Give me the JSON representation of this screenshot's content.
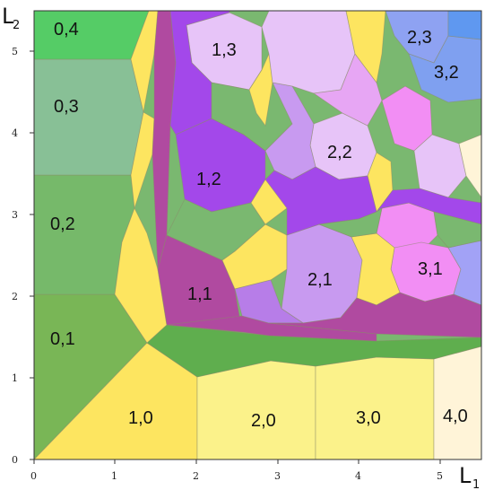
{
  "axes": {
    "x_title": "L",
    "x_sub": "1",
    "y_title": "L",
    "y_sub": "2",
    "x_ticks": [
      "0",
      "1",
      "2",
      "3",
      "4",
      "5"
    ],
    "y_ticks": [
      "0",
      "1",
      "2",
      "3",
      "4",
      "5"
    ]
  },
  "labels": {
    "r04": "0,4",
    "r03": "0,3",
    "r02": "0,2",
    "r01": "0,1",
    "r10": "1,0",
    "r20": "2,0",
    "r30": "3,0",
    "r40": "4,0",
    "r11": "1,1",
    "r12": "1,2",
    "r13": "1,3",
    "r21": "2,1",
    "r22": "2,2",
    "r23": "2,3",
    "r31": "3,1",
    "r32": "3,2"
  },
  "colors": {
    "green_bright": "#55cc66",
    "green_teal": "#88c096",
    "green_mid": "#7ab870",
    "green_olive": "#79b656",
    "green_field": "#6aab5a",
    "yellow_bright": "#fde560",
    "yellow_light": "#fbf28a",
    "cream": "#fff4d8",
    "magenta": "#b04aa0",
    "purple": "#a348ea",
    "lilac": "#c89af0",
    "pale_lilac": "#e7c4f8",
    "pink": "#f28ef4",
    "periwinkle": "#a2a2f6",
    "blue": "#5f98f0"
  }
}
